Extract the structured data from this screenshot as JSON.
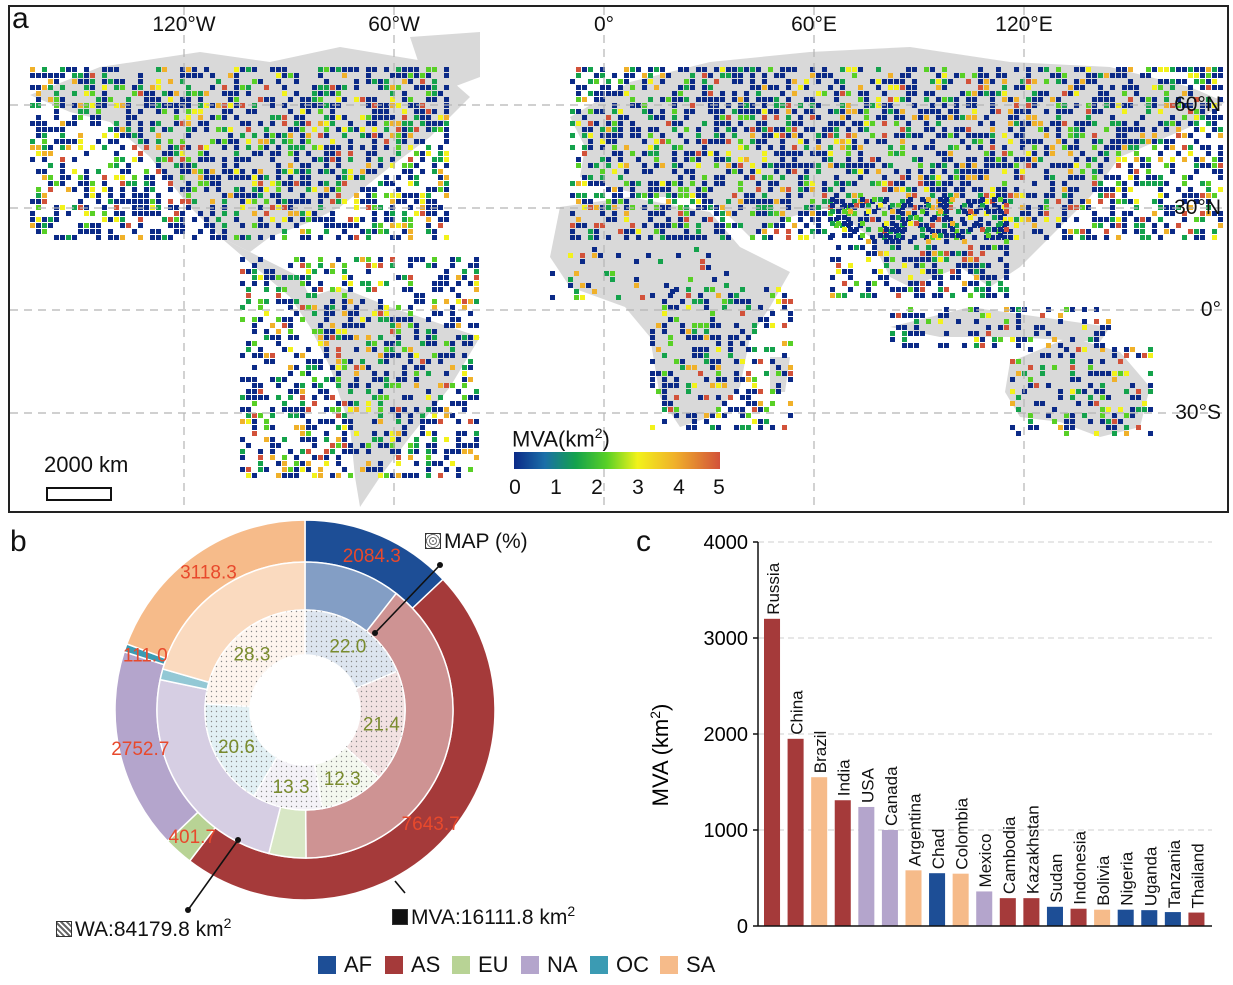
{
  "panel_a": {
    "letter": "a",
    "lon_labels": [
      "120°W",
      "60°W",
      "0°",
      "60°E",
      "120°E"
    ],
    "lat_labels": [
      "60°N",
      "30°N",
      "0°",
      "30°S"
    ],
    "scale_label": "2000 km",
    "colorbar": {
      "title_prefix": "MVA(km",
      "title_sup": "2",
      "title_suffix": ")",
      "ticks": [
        "0",
        "1",
        "2",
        "3",
        "4",
        "5"
      ],
      "colors": [
        "#0b2a87",
        "#14a24c",
        "#58d026",
        "#f2f21b",
        "#f0b12a",
        "#d2523a"
      ]
    },
    "land_color": "#d9d9d9"
  },
  "panel_b": {
    "letter": "b",
    "map_label": "MAP (%)",
    "wa_label_prefix": "WA:84179.8 km",
    "wa_label_sup": "2",
    "mva_label_prefix": "MVA:16111.8 km",
    "mva_label_sup": "2"
  },
  "legend": [
    {
      "code": "AF",
      "color": "#1d4e96"
    },
    {
      "code": "AS",
      "color": "#a53a3a"
    },
    {
      "code": "EU",
      "color": "#b8d395"
    },
    {
      "code": "NA",
      "color": "#b4a5cc"
    },
    {
      "code": "OC",
      "color": "#3b9bb3"
    },
    {
      "code": "SA",
      "color": "#f6bb8a"
    }
  ],
  "panel_c": {
    "letter": "c",
    "ylabel_prefix": "MVA (km",
    "ylabel_sup": "2",
    "ylabel_suffix": ")"
  },
  "chart_data": [
    {
      "type": "pie",
      "title": "",
      "rings": [
        {
          "name": "MVA",
          "unit": "km2",
          "slices": [
            {
              "label": "AF",
              "value": 2084.3,
              "color": "#1d4e96"
            },
            {
              "label": "AS",
              "value": 7643.7,
              "color": "#a53a3a"
            },
            {
              "label": "EU",
              "value": 401.7,
              "color": "#b8d395"
            },
            {
              "label": "NA",
              "value": 2752.7,
              "color": "#b4a5cc"
            },
            {
              "label": "OC",
              "value": 111.0,
              "color": "#3b9bb3"
            },
            {
              "label": "SA",
              "value": 3118.3,
              "color": "#f6bb8a"
            }
          ]
        },
        {
          "name": "WA",
          "unit": "km2",
          "slices": [
            {
              "label": "AF",
              "value": 8900
            },
            {
              "label": "AS",
              "value": 33100
            },
            {
              "label": "EU",
              "value": 3400
            },
            {
              "label": "NA",
              "value": 20500
            },
            {
              "label": "OC",
              "value": 1000
            },
            {
              "label": "SA",
              "value": 17279.8
            }
          ]
        },
        {
          "name": "MAP",
          "unit": "%",
          "slices": [
            {
              "label": "AF",
              "value": 22.0
            },
            {
              "label": "AS",
              "value": 21.4
            },
            {
              "label": "EU",
              "value": 12.3
            },
            {
              "label": "NA",
              "value": 13.3
            },
            {
              "label": "OC",
              "value": 20.6
            },
            {
              "label": "SA",
              "value": 28.3
            }
          ]
        }
      ]
    },
    {
      "type": "bar",
      "title": "",
      "xlabel": "",
      "ylabel": "MVA (km2)",
      "ylim": [
        0,
        4000
      ],
      "yticks": [
        0,
        1000,
        2000,
        3000,
        4000
      ],
      "grid": true,
      "categories": [
        "Russia",
        "China",
        "Brazil",
        "India",
        "USA",
        "Canada",
        "Argentina",
        "Chad",
        "Colombia",
        "Mexico",
        "Cambodia",
        "Kazakhstan",
        "Sudan",
        "Indonesia",
        "Bolivia",
        "Nigeria",
        "Uganda",
        "Tanzania",
        "Thailand"
      ],
      "values": [
        3200,
        1950,
        1550,
        1310,
        1240,
        1000,
        580,
        550,
        545,
        360,
        290,
        290,
        200,
        180,
        170,
        170,
        165,
        145,
        140
      ],
      "continents": [
        "AS",
        "AS",
        "SA",
        "AS",
        "NA",
        "NA",
        "SA",
        "AF",
        "SA",
        "NA",
        "AS",
        "AS",
        "AF",
        "AS",
        "SA",
        "AF",
        "AF",
        "AF",
        "AS"
      ]
    }
  ]
}
